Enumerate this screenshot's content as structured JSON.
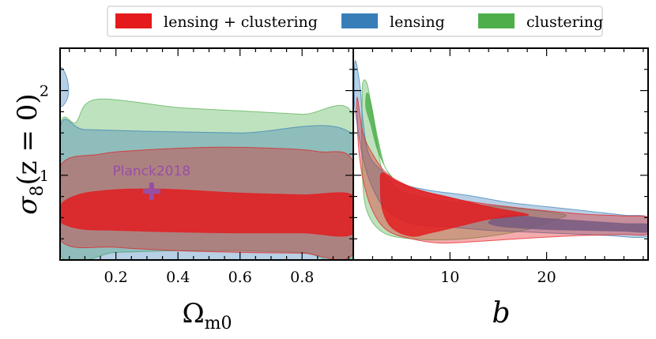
{
  "chart_data": {
    "type": "contour",
    "legend": {
      "placement": "top",
      "entries": [
        {
          "label": "lensing + clustering",
          "color": "#e41a1c"
        },
        {
          "label": "lensing",
          "color": "#377eb8"
        },
        {
          "label": "clustering",
          "color": "#4daf4a"
        }
      ]
    },
    "ylabel_sigma": "σ",
    "ylabel_sub": "8",
    "ylabel_rest": "(z = 0)",
    "yrange": [
      0.0,
      2.5
    ],
    "yticks": [
      1,
      2
    ],
    "ytick_labels": [
      "1",
      "2"
    ],
    "panels": [
      {
        "name": "omega",
        "xlabel_main": "Ω",
        "xlabel_sub": "m0",
        "xrange": [
          0.02,
          0.965
        ],
        "xticks": [
          0.2,
          0.4,
          0.6,
          0.8
        ],
        "xtick_labels": [
          "0.2",
          "0.4",
          "0.6",
          "0.8"
        ],
        "marker": {
          "label": "Planck2018",
          "x": 0.315,
          "y": 0.81,
          "color": "#984ea3"
        },
        "contours": [
          {
            "series": "clustering",
            "level": "95%",
            "color": "#4daf4a",
            "points": [
              [
                0.02,
                0.07
              ],
              [
                0.2,
                0.09
              ],
              [
                0.4,
                0.11
              ],
              [
                0.6,
                0.11
              ],
              [
                0.8,
                0.09
              ],
              [
                0.965,
                0.07
              ],
              [
                0.965,
                1.7
              ],
              [
                0.8,
                1.72
              ],
              [
                0.6,
                1.76
              ],
              [
                0.4,
                1.8
              ],
              [
                0.25,
                1.87
              ],
              [
                0.15,
                1.9
              ],
              [
                0.1,
                1.83
              ],
              [
                0.07,
                1.62
              ],
              [
                0.02,
                1.57
              ]
            ]
          },
          {
            "series": "lensing",
            "level": "95%",
            "color": "#377eb8",
            "points": [
              [
                0.02,
                0.0
              ],
              [
                0.965,
                0.0
              ],
              [
                0.965,
                1.47
              ],
              [
                0.6,
                1.5
              ],
              [
                0.3,
                1.52
              ],
              [
                0.1,
                1.54
              ],
              [
                0.02,
                1.55
              ]
            ]
          },
          {
            "series": "lensing",
            "level": "95% island",
            "color": "#377eb8",
            "points": [
              [
                0.02,
                2.25
              ],
              [
                0.037,
                2.2
              ],
              [
                0.047,
                2.05
              ],
              [
                0.043,
                1.9
              ],
              [
                0.02,
                1.83
              ]
            ]
          },
          {
            "series": "lensing + clustering",
            "level": "95%",
            "color": "#e41a1c",
            "points": [
              [
                0.02,
                0.24
              ],
              [
                0.2,
                0.15
              ],
              [
                0.4,
                0.11
              ],
              [
                0.6,
                0.09
              ],
              [
                0.8,
                0.08
              ],
              [
                0.965,
                0.08
              ],
              [
                0.965,
                1.15
              ],
              [
                0.85,
                1.28
              ],
              [
                0.7,
                1.32
              ],
              [
                0.5,
                1.33
              ],
              [
                0.3,
                1.3
              ],
              [
                0.15,
                1.25
              ],
              [
                0.02,
                1.1
              ]
            ]
          },
          {
            "series": "lensing + clustering",
            "level": "68%",
            "color": "#e41a1c",
            "points": [
              [
                0.02,
                0.47
              ],
              [
                0.04,
                0.41
              ],
              [
                0.1,
                0.36
              ],
              [
                0.2,
                0.35
              ],
              [
                0.4,
                0.33
              ],
              [
                0.6,
                0.32
              ],
              [
                0.8,
                0.32
              ],
              [
                0.965,
                0.31
              ],
              [
                0.965,
                0.76
              ],
              [
                0.8,
                0.77
              ],
              [
                0.6,
                0.79
              ],
              [
                0.4,
                0.83
              ],
              [
                0.3,
                0.84
              ],
              [
                0.2,
                0.83
              ],
              [
                0.1,
                0.79
              ],
              [
                0.04,
                0.71
              ],
              [
                0.02,
                0.62
              ]
            ]
          }
        ]
      },
      {
        "name": "bias",
        "xlabel_main": "b",
        "xrange": [
          0.0,
          30.5
        ],
        "xticks": [
          10,
          20
        ],
        "xtick_labels": [
          "10",
          "20"
        ],
        "contours": [
          {
            "series": "clustering",
            "level": "95%",
            "color": "#4daf4a",
            "points": [
              [
                1,
                2.1
              ],
              [
                1.5,
                2.05
              ],
              [
                2.2,
                1.55
              ],
              [
                3,
                1.05
              ],
              [
                4,
                0.9
              ],
              [
                5,
                0.81
              ],
              [
                8,
                0.72
              ],
              [
                12,
                0.66
              ],
              [
                16,
                0.62
              ],
              [
                20,
                0.57
              ],
              [
                22,
                0.53
              ],
              [
                21,
                0.48
              ],
              [
                18,
                0.36
              ],
              [
                14,
                0.28
              ],
              [
                10,
                0.24
              ],
              [
                6,
                0.25
              ],
              [
                3,
                0.33
              ],
              [
                1.3,
                0.62
              ],
              [
                0.9,
                1.2
              ],
              [
                0.9,
                1.8
              ]
            ]
          },
          {
            "series": "clustering",
            "level": "68%",
            "color": "#4daf4a",
            "points": [
              [
                1.4,
                1.97
              ],
              [
                1.8,
                1.87
              ],
              [
                2.5,
                1.45
              ],
              [
                3.2,
                1.12
              ],
              [
                4,
                0.98
              ],
              [
                3.5,
                1.05
              ],
              [
                2.5,
                1.3
              ],
              [
                1.8,
                1.6
              ],
              [
                1.3,
                1.8
              ]
            ]
          },
          {
            "series": "lensing",
            "level": "95%",
            "color": "#377eb8",
            "points": [
              [
                0.2,
                2.35
              ],
              [
                0.7,
                2.05
              ],
              [
                1,
                1.65
              ],
              [
                1.6,
                1.25
              ],
              [
                3,
                1.05
              ],
              [
                5,
                0.9
              ],
              [
                8,
                0.82
              ],
              [
                12,
                0.76
              ],
              [
                16,
                0.68
              ],
              [
                20,
                0.63
              ],
              [
                24,
                0.58
              ],
              [
                28,
                0.53
              ],
              [
                30.5,
                0.5
              ],
              [
                30.5,
                0.28
              ],
              [
                26,
                0.29
              ],
              [
                22,
                0.31
              ],
              [
                18,
                0.33
              ],
              [
                14,
                0.35
              ],
              [
                10,
                0.39
              ],
              [
                6,
                0.43
              ],
              [
                3.5,
                0.58
              ],
              [
                2,
                0.85
              ],
              [
                1,
                1.2
              ],
              [
                0.4,
                1.6
              ],
              [
                0.1,
                1.9
              ]
            ]
          },
          {
            "series": "lensing",
            "level": "68%",
            "color": "#377eb8",
            "points": [
              [
                16,
                0.53
              ],
              [
                20,
                0.49
              ],
              [
                24,
                0.46
              ],
              [
                28,
                0.43
              ],
              [
                30.5,
                0.42
              ],
              [
                30.5,
                0.33
              ],
              [
                28,
                0.34
              ],
              [
                24,
                0.35
              ],
              [
                20,
                0.36
              ],
              [
                17,
                0.38
              ],
              [
                15,
                0.4
              ],
              [
                14,
                0.45
              ]
            ]
          },
          {
            "series": "lensing + clustering",
            "level": "95%",
            "color": "#e41a1c",
            "points": [
              [
                0.4,
                1.92
              ],
              [
                1,
                1.5
              ],
              [
                2,
                1.25
              ],
              [
                3.5,
                1.02
              ],
              [
                6,
                0.86
              ],
              [
                9,
                0.76
              ],
              [
                12,
                0.69
              ],
              [
                16,
                0.63
              ],
              [
                20,
                0.58
              ],
              [
                24,
                0.54
              ],
              [
                28,
                0.52
              ],
              [
                30.5,
                0.5
              ],
              [
                30.5,
                0.31
              ],
              [
                28,
                0.3
              ],
              [
                24,
                0.29
              ],
              [
                20,
                0.27
              ],
              [
                17,
                0.25
              ],
              [
                13,
                0.22
              ],
              [
                9,
                0.2
              ],
              [
                6,
                0.25
              ],
              [
                3.5,
                0.35
              ],
              [
                2,
                0.58
              ],
              [
                1,
                0.95
              ],
              [
                0.5,
                1.4
              ]
            ]
          },
          {
            "series": "lensing + clustering",
            "level": "68%",
            "color": "#e41a1c",
            "points": [
              [
                3,
                1.03
              ],
              [
                4.5,
                0.93
              ],
              [
                7,
                0.82
              ],
              [
                10,
                0.74
              ],
              [
                14,
                0.63
              ],
              [
                18,
                0.54
              ],
              [
                17,
                0.52
              ],
              [
                14,
                0.48
              ],
              [
                11,
                0.4
              ],
              [
                8,
                0.32
              ],
              [
                6,
                0.28
              ],
              [
                4,
                0.38
              ],
              [
                3,
                0.6
              ],
              [
                2.8,
                0.9
              ]
            ]
          }
        ]
      }
    ]
  }
}
